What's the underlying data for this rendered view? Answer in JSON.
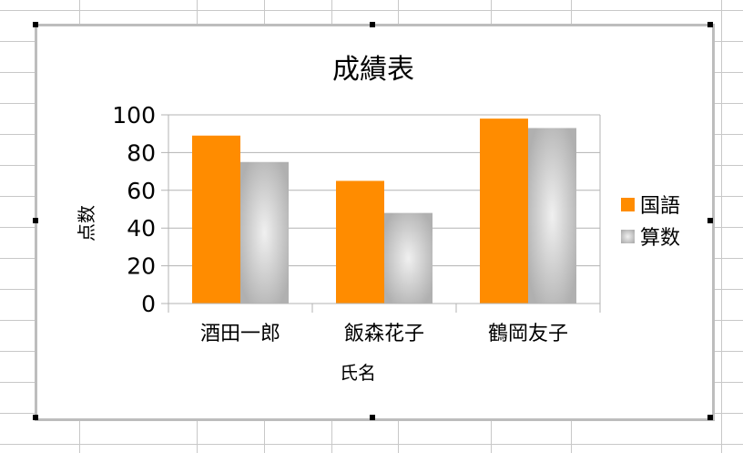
{
  "chart_data": {
    "type": "bar",
    "title": "成績表",
    "xlabel": "氏名",
    "ylabel": "点数",
    "categories": [
      "酒田一郎",
      "飯森花子",
      "鶴岡友子"
    ],
    "series": [
      {
        "name": "国語",
        "values": [
          89,
          65,
          98
        ],
        "color": "#ff8c00"
      },
      {
        "name": "算数",
        "values": [
          75,
          48,
          93
        ],
        "color": "#b4b4b4"
      }
    ],
    "ylim": [
      0,
      100
    ],
    "yticks": [
      0,
      20,
      40,
      60,
      80,
      100
    ],
    "grid": true,
    "legend": "right"
  }
}
